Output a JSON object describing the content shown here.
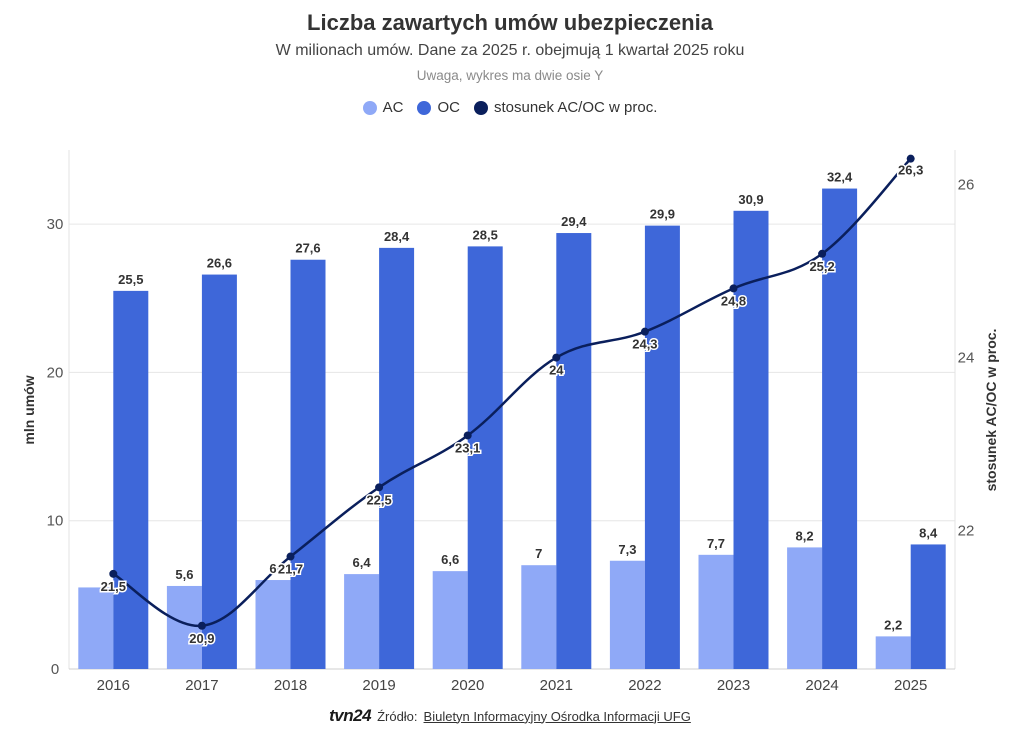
{
  "header": {
    "title": "Liczba zawartych umów ubezpieczenia",
    "subtitle": "W milionach umów. Dane za 2025 r. obejmują 1 kwartał 2025 roku",
    "note": "Uwaga, wykres ma dwie osie Y"
  },
  "legend": {
    "ac": "AC",
    "oc": "OC",
    "ratio": "stosunek AC/OC w proc."
  },
  "colors": {
    "ac": "#8fa9f7",
    "oc": "#3e67d9",
    "ratio": "#0a1f5c",
    "grid": "#e6e6e6"
  },
  "footer": {
    "brand": "tvn24",
    "source_label": "Źródło:",
    "source_link": "Biuletyn Informacyjny Ośrodka Informacji UFG"
  },
  "chart_data": {
    "type": "bar",
    "title": "Liczba zawartych umów ubezpieczenia",
    "categories": [
      "2016",
      "2017",
      "2018",
      "2019",
      "2020",
      "2021",
      "2022",
      "2023",
      "2024",
      "2025"
    ],
    "series": [
      {
        "name": "AC",
        "type": "bar",
        "axis": "left",
        "values": [
          5.5,
          5.6,
          6,
          6.4,
          6.6,
          7,
          7.3,
          7.7,
          8.2,
          2.2
        ],
        "labels": [
          "",
          "5,6",
          "6",
          "6,4",
          "6,6",
          "7",
          "7,3",
          "7,7",
          "8,2",
          "2,2"
        ]
      },
      {
        "name": "OC",
        "type": "bar",
        "axis": "left",
        "values": [
          25.5,
          26.6,
          27.6,
          28.4,
          28.5,
          29.4,
          29.9,
          30.9,
          32.4,
          8.4
        ],
        "labels": [
          "25,5",
          "26,6",
          "27,6",
          "28,4",
          "28,5",
          "29,4",
          "29,9",
          "30,9",
          "32,4",
          "8,4"
        ]
      },
      {
        "name": "stosunek AC/OC w proc.",
        "type": "line",
        "axis": "right",
        "values": [
          21.5,
          20.9,
          21.7,
          22.5,
          23.1,
          24,
          24.3,
          24.8,
          25.2,
          26.3
        ],
        "labels": [
          "21,5",
          "20,9",
          "21,7",
          "22,5",
          "23,1",
          "24",
          "24,3",
          "24,8",
          "25,2",
          "26,3"
        ]
      }
    ],
    "ylabel": "mln umów",
    "ylabel_right": "stosunek AC/OC w proc.",
    "ylim": [
      0,
      35
    ],
    "ylim_right": [
      20.4,
      26.4
    ],
    "yticks": [
      "0",
      "10",
      "20",
      "30"
    ],
    "yticks_values": [
      0,
      10,
      20,
      30
    ],
    "yticks_right": [
      "22",
      "24",
      "26"
    ],
    "yticks_right_values": [
      22,
      24,
      26
    ],
    "grid": true,
    "legend_position": "top-center"
  }
}
